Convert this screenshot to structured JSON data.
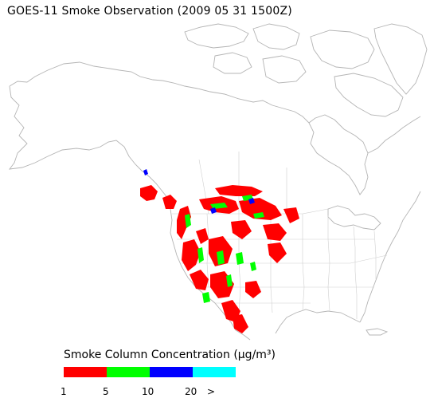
{
  "title": "GOES-11 Smoke Observation (2009 05 31  1500Z)",
  "legend": {
    "title": "Smoke Column Concentration (μg/m³)",
    "swatches": [
      {
        "color": "#ff0000",
        "range": "1-5"
      },
      {
        "color": "#00ff00",
        "range": "5-10"
      },
      {
        "color": "#0000ff",
        "range": "10-20"
      },
      {
        "color": "#00ffff",
        "range": ">20"
      }
    ],
    "ticks": [
      "1",
      "5",
      "10",
      "20",
      ">"
    ]
  },
  "colors": {
    "coastline": "#b4b4b4",
    "smoke_low": "#ff0000",
    "smoke_mid": "#00ff00",
    "smoke_high": "#0000ff",
    "smoke_max": "#00ffff"
  }
}
